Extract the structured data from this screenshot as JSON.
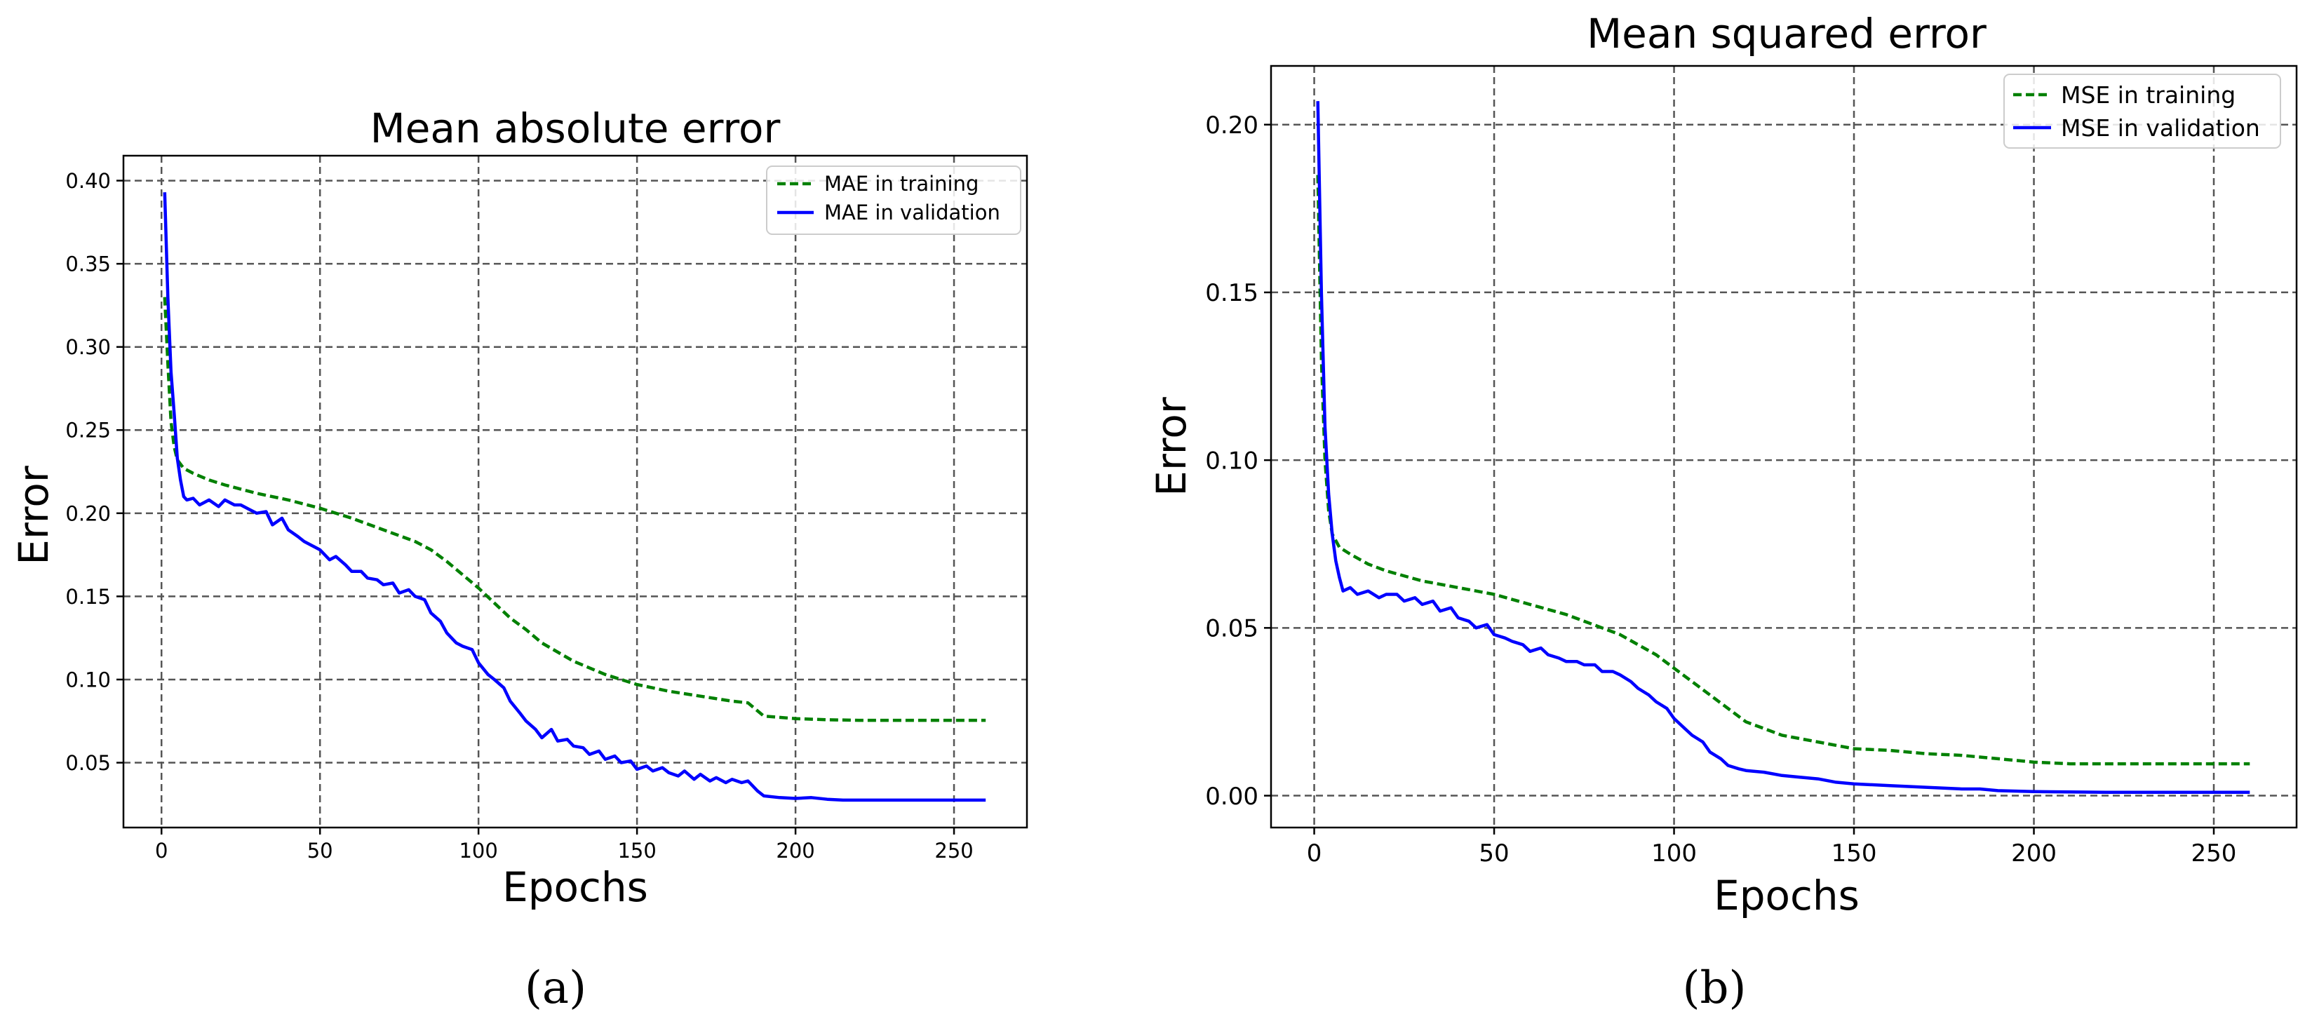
{
  "figure": {
    "label_a": "(a)",
    "label_b": "(b)"
  },
  "colors": {
    "training": "#008000",
    "validation": "#0000ff"
  },
  "chart_data": [
    {
      "type": "line",
      "title": "Mean absolute error",
      "xlabel": "Epochs",
      "ylabel": "Error",
      "xlim": [
        -12,
        273
      ],
      "ylim": [
        0.011,
        0.415
      ],
      "xticks": [
        0,
        50,
        100,
        150,
        200,
        250
      ],
      "yticks": [
        0.05,
        0.1,
        0.15,
        0.2,
        0.25,
        0.3,
        0.35,
        0.4
      ],
      "xtick_labels": [
        "0",
        "50",
        "100",
        "150",
        "200",
        "250"
      ],
      "ytick_labels": [
        "0.05",
        "0.10",
        "0.15",
        "0.20",
        "0.25",
        "0.30",
        "0.35",
        "0.40"
      ],
      "grid": true,
      "legend": "upper right",
      "series": [
        {
          "name": "MAE in training",
          "style": "dashed",
          "color": "#008000",
          "x": [
            1,
            2,
            3,
            4,
            5,
            7,
            10,
            15,
            20,
            30,
            40,
            50,
            60,
            70,
            80,
            85,
            90,
            95,
            100,
            105,
            110,
            115,
            120,
            130,
            140,
            150,
            160,
            170,
            180,
            185,
            190,
            200,
            210,
            220,
            230,
            240,
            250,
            260
          ],
          "values": [
            0.33,
            0.29,
            0.255,
            0.24,
            0.232,
            0.227,
            0.224,
            0.22,
            0.217,
            0.212,
            0.208,
            0.203,
            0.197,
            0.19,
            0.183,
            0.178,
            0.171,
            0.163,
            0.155,
            0.146,
            0.137,
            0.13,
            0.122,
            0.111,
            0.103,
            0.097,
            0.093,
            0.09,
            0.087,
            0.086,
            0.078,
            0.0765,
            0.0758,
            0.0755,
            0.0755,
            0.0755,
            0.0755,
            0.0755
          ]
        },
        {
          "name": "MAE in validation",
          "style": "solid",
          "color": "#0000ff",
          "x": [
            1,
            2,
            3,
            4,
            5,
            6,
            7,
            8,
            10,
            12,
            15,
            18,
            20,
            23,
            25,
            28,
            30,
            33,
            35,
            38,
            40,
            43,
            45,
            48,
            50,
            53,
            55,
            58,
            60,
            63,
            65,
            68,
            70,
            73,
            75,
            78,
            80,
            83,
            85,
            88,
            90,
            93,
            95,
            98,
            100,
            103,
            105,
            108,
            110,
            113,
            115,
            118,
            120,
            123,
            125,
            128,
            130,
            133,
            135,
            138,
            140,
            143,
            145,
            148,
            150,
            153,
            155,
            158,
            160,
            163,
            165,
            168,
            170,
            173,
            175,
            178,
            180,
            183,
            185,
            188,
            190,
            195,
            200,
            205,
            210,
            215,
            220,
            230,
            240,
            250,
            260
          ],
          "values": [
            0.393,
            0.33,
            0.285,
            0.26,
            0.233,
            0.22,
            0.21,
            0.208,
            0.209,
            0.205,
            0.208,
            0.204,
            0.208,
            0.205,
            0.205,
            0.202,
            0.2,
            0.201,
            0.193,
            0.197,
            0.19,
            0.186,
            0.183,
            0.18,
            0.178,
            0.172,
            0.174,
            0.169,
            0.165,
            0.165,
            0.161,
            0.16,
            0.157,
            0.158,
            0.152,
            0.154,
            0.15,
            0.148,
            0.14,
            0.135,
            0.128,
            0.122,
            0.12,
            0.118,
            0.11,
            0.103,
            0.1,
            0.095,
            0.087,
            0.08,
            0.075,
            0.07,
            0.065,
            0.07,
            0.063,
            0.064,
            0.06,
            0.059,
            0.055,
            0.057,
            0.052,
            0.054,
            0.05,
            0.051,
            0.046,
            0.048,
            0.045,
            0.047,
            0.044,
            0.042,
            0.045,
            0.04,
            0.043,
            0.039,
            0.041,
            0.038,
            0.04,
            0.038,
            0.039,
            0.033,
            0.03,
            0.029,
            0.0285,
            0.029,
            0.028,
            0.0275,
            0.0275,
            0.0275,
            0.0275,
            0.0275,
            0.0275
          ]
        }
      ]
    },
    {
      "type": "line",
      "title": "Mean squared error",
      "xlabel": "Epochs",
      "ylabel": "Error",
      "xlim": [
        -12,
        273
      ],
      "ylim": [
        -0.0095,
        0.2175
      ],
      "xticks": [
        0,
        50,
        100,
        150,
        200,
        250
      ],
      "yticks": [
        0.0,
        0.05,
        0.1,
        0.15,
        0.2
      ],
      "xtick_labels": [
        "0",
        "50",
        "100",
        "150",
        "200",
        "250"
      ],
      "ytick_labels": [
        "0.00",
        "0.05",
        "0.10",
        "0.15",
        "0.20"
      ],
      "grid": true,
      "legend": "upper right",
      "series": [
        {
          "name": "MSE in training",
          "style": "dashed",
          "color": "#008000",
          "x": [
            1,
            2,
            3,
            4,
            5,
            7,
            10,
            15,
            20,
            30,
            40,
            50,
            60,
            70,
            80,
            85,
            90,
            95,
            100,
            105,
            110,
            115,
            120,
            130,
            140,
            150,
            160,
            170,
            180,
            185,
            190,
            200,
            210,
            220,
            230,
            240,
            250,
            260
          ],
          "values": [
            0.185,
            0.13,
            0.1,
            0.085,
            0.078,
            0.074,
            0.072,
            0.069,
            0.067,
            0.064,
            0.062,
            0.06,
            0.057,
            0.054,
            0.05,
            0.048,
            0.045,
            0.042,
            0.038,
            0.034,
            0.03,
            0.026,
            0.022,
            0.018,
            0.016,
            0.014,
            0.0135,
            0.0125,
            0.012,
            0.0115,
            0.011,
            0.01,
            0.0095,
            0.0095,
            0.0095,
            0.0095,
            0.0095,
            0.0095
          ]
        },
        {
          "name": "MSE in validation",
          "style": "solid",
          "color": "#0000ff",
          "x": [
            1,
            2,
            3,
            4,
            5,
            6,
            7,
            8,
            10,
            12,
            15,
            18,
            20,
            23,
            25,
            28,
            30,
            33,
            35,
            38,
            40,
            43,
            45,
            48,
            50,
            53,
            55,
            58,
            60,
            63,
            65,
            68,
            70,
            73,
            75,
            78,
            80,
            83,
            85,
            88,
            90,
            93,
            95,
            98,
            100,
            103,
            105,
            108,
            110,
            113,
            115,
            118,
            120,
            125,
            130,
            135,
            140,
            145,
            150,
            160,
            170,
            180,
            185,
            190,
            200,
            210,
            220,
            230,
            240,
            250,
            260
          ],
          "values": [
            0.207,
            0.15,
            0.11,
            0.09,
            0.078,
            0.07,
            0.065,
            0.061,
            0.062,
            0.06,
            0.061,
            0.059,
            0.06,
            0.06,
            0.058,
            0.059,
            0.057,
            0.058,
            0.055,
            0.056,
            0.053,
            0.052,
            0.05,
            0.051,
            0.048,
            0.047,
            0.046,
            0.045,
            0.043,
            0.044,
            0.042,
            0.041,
            0.04,
            0.04,
            0.039,
            0.039,
            0.037,
            0.037,
            0.036,
            0.034,
            0.032,
            0.03,
            0.028,
            0.026,
            0.023,
            0.02,
            0.018,
            0.016,
            0.013,
            0.011,
            0.009,
            0.008,
            0.0075,
            0.007,
            0.006,
            0.0055,
            0.005,
            0.004,
            0.0035,
            0.003,
            0.0025,
            0.002,
            0.002,
            0.0015,
            0.0012,
            0.0011,
            0.001,
            0.001,
            0.001,
            0.001,
            0.001
          ]
        }
      ]
    }
  ]
}
